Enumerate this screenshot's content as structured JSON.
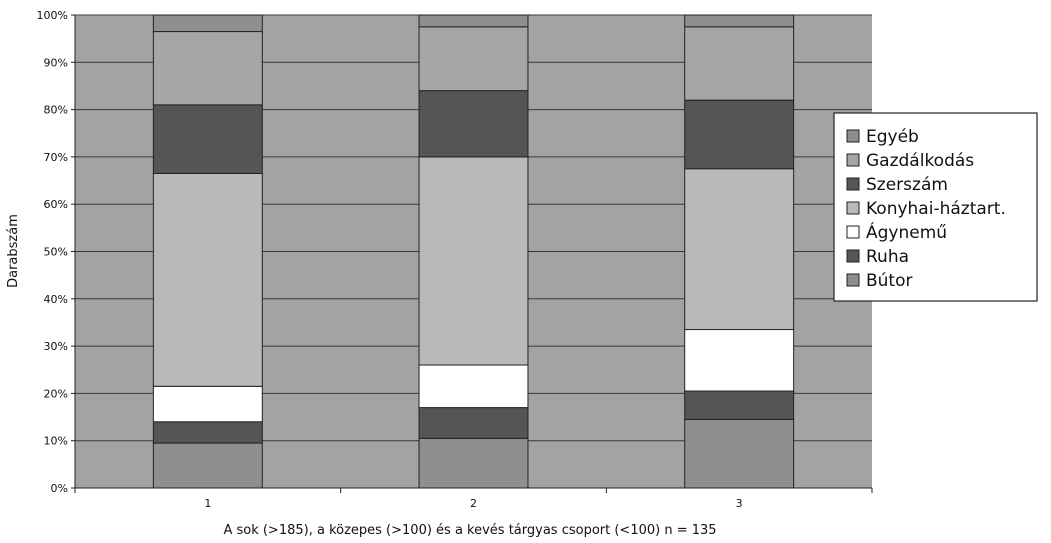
{
  "chart_data": {
    "type": "bar",
    "stacked": true,
    "percent": true,
    "title": "",
    "xlabel": "A sok (>185), a közepes (>100) és a kevés tárgyas csoport (<100) n = 135",
    "ylabel": "Darabszám",
    "categories": [
      "1",
      "2",
      "3"
    ],
    "ylim": [
      0,
      100
    ],
    "yticks": [
      "0%",
      "10%",
      "20%",
      "30%",
      "40%",
      "50%",
      "60%",
      "70%",
      "80%",
      "90%",
      "100%"
    ],
    "grid": true,
    "legend_position": "right",
    "series": [
      {
        "name": "Bútor",
        "values": [
          9.5,
          10.5,
          14.5
        ],
        "color": "#8f8f8f"
      },
      {
        "name": "Ruha",
        "values": [
          4.5,
          6.5,
          6
        ],
        "color": "#555555"
      },
      {
        "name": "Ágynemű",
        "values": [
          7.5,
          9,
          13
        ],
        "color": "#ffffff"
      },
      {
        "name": "Konyhai-háztart.",
        "values": [
          45,
          44,
          34
        ],
        "color": "#b9b9b9"
      },
      {
        "name": "Szerszám",
        "values": [
          14.5,
          14,
          14.5
        ],
        "color": "#555555"
      },
      {
        "name": "Gazdálkodás",
        "values": [
          15.5,
          13.5,
          15.5
        ],
        "color": "#a6a6a6"
      },
      {
        "name": "Egyéb",
        "values": [
          3.5,
          2.5,
          2.5
        ],
        "color": "#8f8f8f"
      }
    ],
    "legend_order": [
      "Egyéb",
      "Gazdálkodás",
      "Szerszám",
      "Konyhai-háztart.",
      "Ágynemű",
      "Ruha",
      "Bútor"
    ],
    "colors": {
      "plot_background": "#a3a3a3",
      "gridline": "#3a3a3a",
      "bar_outline": "#222222"
    }
  }
}
